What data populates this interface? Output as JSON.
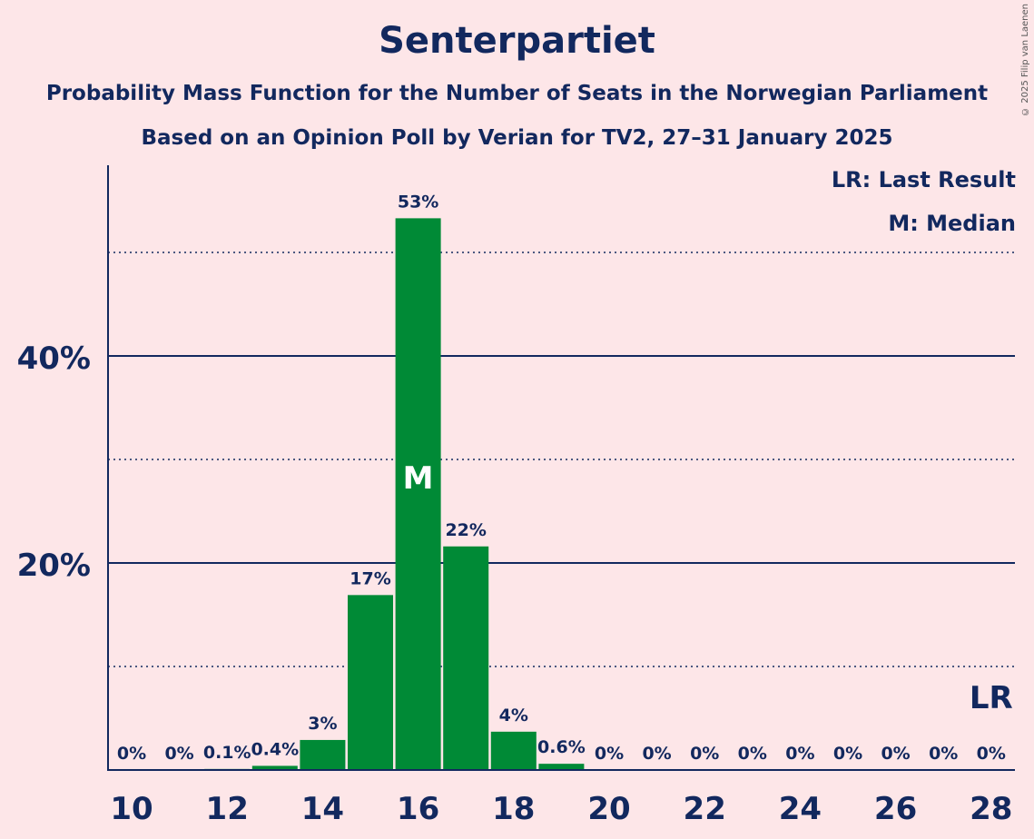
{
  "chart_data": {
    "type": "bar",
    "title": "Senterpartiet",
    "subtitle_1": "Probability Mass Function for the Number of Seats in the Norwegian Parliament",
    "subtitle_2": "Based on an Opinion Poll by Verian for TV2, 27–31 January 2025",
    "copyright": "© 2025 Filip van Laenen",
    "categories": [
      10,
      11,
      12,
      13,
      14,
      15,
      16,
      17,
      18,
      19,
      20,
      21,
      22,
      23,
      24,
      25,
      26,
      27,
      28
    ],
    "values": [
      0,
      0,
      0.1,
      0.4,
      3,
      17,
      53,
      22,
      4,
      0.6,
      0,
      0,
      0,
      0,
      0,
      0,
      0,
      0,
      0
    ],
    "bar_values_plot": [
      0,
      0,
      0.1,
      0.4,
      2.9,
      16.9,
      53.3,
      21.6,
      3.7,
      0.6,
      0,
      0,
      0,
      0,
      0,
      0,
      0,
      0,
      0
    ],
    "value_labels": [
      "0%",
      "0%",
      "0.1%",
      "0.4%",
      "3%",
      "17%",
      "53%",
      "22%",
      "4%",
      "0.6%",
      "0%",
      "0%",
      "0%",
      "0%",
      "0%",
      "0%",
      "0%",
      "0%",
      "0%"
    ],
    "x_tick_labels": [
      "10",
      "12",
      "14",
      "16",
      "18",
      "20",
      "22",
      "24",
      "26",
      "28"
    ],
    "y_tick_labels": [
      "20%",
      "40%"
    ],
    "y_major_ticks": [
      20,
      40
    ],
    "y_minor_ticks": [
      10,
      30,
      50
    ],
    "ylim": [
      0,
      58
    ],
    "median_seat": 16,
    "median_marker": "M",
    "last_result_seat": 28,
    "last_result_marker": "LR",
    "legend": [
      "LR: Last Result",
      "M: Median"
    ],
    "colors": {
      "bar": "#008a36",
      "text": "#12285e",
      "background": "#fde6e8"
    }
  }
}
